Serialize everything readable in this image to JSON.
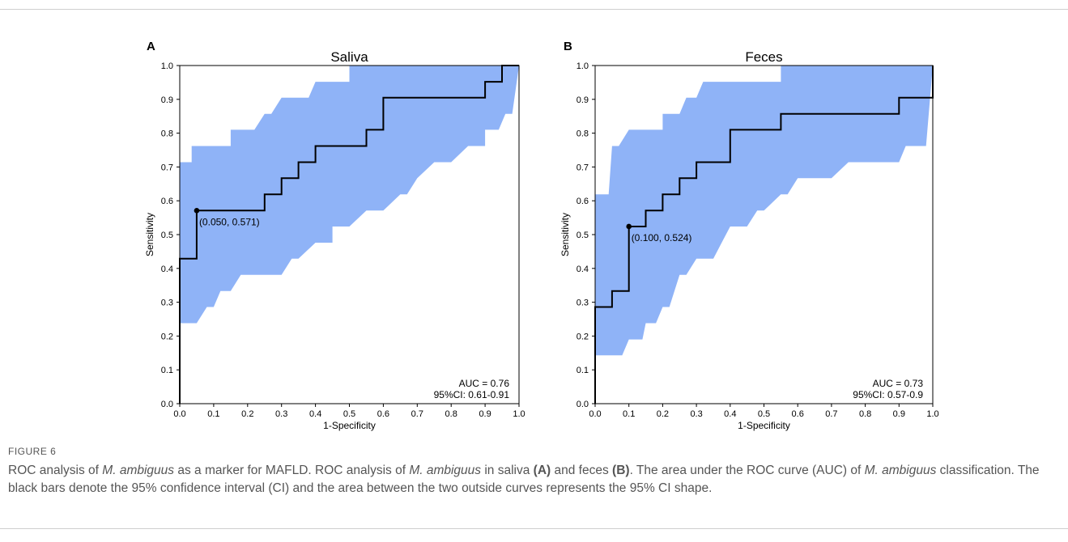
{
  "figure": {
    "label": "FIGURE 6",
    "caption": {
      "s1": "ROC analysis of ",
      "species": "M. ambiguus",
      "s2": " as a marker for MAFLD. ROC analysis of ",
      "s3": " in saliva ",
      "panel_a_ref": "(A)",
      "s4": " and feces ",
      "panel_b_ref": "(B)",
      "s5": ". The area under the ROC curve (AUC) of ",
      "s6": " classification. The black bars denote the 95% confidence interval (CI) and the area between the two outside curves represents the 95% CI shape."
    }
  },
  "colors": {
    "ci_fill": "#8fb3f7",
    "curve": "#000000",
    "axis": "#000000"
  },
  "chart_data": [
    {
      "type": "line",
      "panel_label": "A",
      "title": "Saliva",
      "xlabel": "1-Specificity",
      "ylabel": "Sensitivity",
      "xlim": [
        0,
        1
      ],
      "ylim": [
        0,
        1
      ],
      "x_ticks": [
        "0.0",
        "0.1",
        "0.2",
        "0.3",
        "0.4",
        "0.5",
        "0.6",
        "0.7",
        "0.8",
        "0.9",
        "1.0"
      ],
      "y_ticks": [
        "0.0",
        "0.1",
        "0.2",
        "0.3",
        "0.4",
        "0.5",
        "0.6",
        "0.7",
        "0.8",
        "0.9",
        "1.0"
      ],
      "roc_curve": [
        [
          0,
          0
        ],
        [
          0,
          0.429
        ],
        [
          0.05,
          0.429
        ],
        [
          0.05,
          0.571
        ],
        [
          0.25,
          0.571
        ],
        [
          0.25,
          0.619
        ],
        [
          0.3,
          0.619
        ],
        [
          0.3,
          0.667
        ],
        [
          0.35,
          0.667
        ],
        [
          0.35,
          0.714
        ],
        [
          0.4,
          0.714
        ],
        [
          0.4,
          0.762
        ],
        [
          0.55,
          0.762
        ],
        [
          0.55,
          0.81
        ],
        [
          0.6,
          0.81
        ],
        [
          0.6,
          0.905
        ],
        [
          0.9,
          0.905
        ],
        [
          0.9,
          0.952
        ],
        [
          0.95,
          0.952
        ],
        [
          0.95,
          1.0
        ],
        [
          1.0,
          1.0
        ]
      ],
      "ci_upper": [
        [
          0,
          0.714
        ],
        [
          0.035,
          0.714
        ],
        [
          0.035,
          0.762
        ],
        [
          0.15,
          0.762
        ],
        [
          0.15,
          0.81
        ],
        [
          0.22,
          0.81
        ],
        [
          0.25,
          0.857
        ],
        [
          0.27,
          0.857
        ],
        [
          0.3,
          0.905
        ],
        [
          0.38,
          0.905
        ],
        [
          0.4,
          0.952
        ],
        [
          0.5,
          0.952
        ],
        [
          0.5,
          1.0
        ],
        [
          1.0,
          1.0
        ]
      ],
      "ci_lower": [
        [
          0,
          0.238
        ],
        [
          0.05,
          0.238
        ],
        [
          0.08,
          0.286
        ],
        [
          0.1,
          0.286
        ],
        [
          0.12,
          0.333
        ],
        [
          0.15,
          0.333
        ],
        [
          0.18,
          0.381
        ],
        [
          0.3,
          0.381
        ],
        [
          0.33,
          0.429
        ],
        [
          0.35,
          0.429
        ],
        [
          0.4,
          0.476
        ],
        [
          0.45,
          0.476
        ],
        [
          0.45,
          0.524
        ],
        [
          0.5,
          0.524
        ],
        [
          0.55,
          0.571
        ],
        [
          0.6,
          0.571
        ],
        [
          0.65,
          0.619
        ],
        [
          0.67,
          0.619
        ],
        [
          0.7,
          0.667
        ],
        [
          0.75,
          0.714
        ],
        [
          0.8,
          0.714
        ],
        [
          0.85,
          0.762
        ],
        [
          0.9,
          0.762
        ],
        [
          0.9,
          0.81
        ],
        [
          0.94,
          0.81
        ],
        [
          0.96,
          0.857
        ],
        [
          0.98,
          0.857
        ],
        [
          1.0,
          1.0
        ]
      ],
      "optimal_point": {
        "x": 0.05,
        "y": 0.571,
        "label": "(0.050, 0.571)"
      },
      "auc_text": "AUC = 0.76",
      "ci_text": "95%CI: 0.61-0.91"
    },
    {
      "type": "line",
      "panel_label": "B",
      "title": "Feces",
      "xlabel": "1-Specificity",
      "ylabel": "Sensitivity",
      "xlim": [
        0,
        1
      ],
      "ylim": [
        0,
        1
      ],
      "x_ticks": [
        "0.0",
        "0.1",
        "0.2",
        "0.3",
        "0.4",
        "0.5",
        "0.6",
        "0.7",
        "0.8",
        "0.9",
        "1.0"
      ],
      "y_ticks": [
        "0.0",
        "0.1",
        "0.2",
        "0.3",
        "0.4",
        "0.5",
        "0.6",
        "0.7",
        "0.8",
        "0.9",
        "1.0"
      ],
      "roc_curve": [
        [
          0,
          0
        ],
        [
          0,
          0.286
        ],
        [
          0.05,
          0.286
        ],
        [
          0.05,
          0.333
        ],
        [
          0.1,
          0.333
        ],
        [
          0.1,
          0.524
        ],
        [
          0.15,
          0.524
        ],
        [
          0.15,
          0.571
        ],
        [
          0.2,
          0.571
        ],
        [
          0.2,
          0.619
        ],
        [
          0.25,
          0.619
        ],
        [
          0.25,
          0.667
        ],
        [
          0.3,
          0.667
        ],
        [
          0.3,
          0.714
        ],
        [
          0.4,
          0.714
        ],
        [
          0.4,
          0.81
        ],
        [
          0.55,
          0.81
        ],
        [
          0.55,
          0.857
        ],
        [
          0.9,
          0.857
        ],
        [
          0.9,
          0.905
        ],
        [
          1.0,
          0.905
        ],
        [
          1.0,
          1.0
        ]
      ],
      "ci_upper": [
        [
          0,
          0.619
        ],
        [
          0.04,
          0.619
        ],
        [
          0.05,
          0.762
        ],
        [
          0.07,
          0.762
        ],
        [
          0.1,
          0.81
        ],
        [
          0.2,
          0.81
        ],
        [
          0.2,
          0.857
        ],
        [
          0.25,
          0.857
        ],
        [
          0.27,
          0.905
        ],
        [
          0.3,
          0.905
        ],
        [
          0.32,
          0.952
        ],
        [
          0.55,
          0.952
        ],
        [
          0.55,
          1.0
        ],
        [
          1.0,
          1.0
        ]
      ],
      "ci_lower": [
        [
          0,
          0.143
        ],
        [
          0.08,
          0.143
        ],
        [
          0.1,
          0.19
        ],
        [
          0.14,
          0.19
        ],
        [
          0.15,
          0.238
        ],
        [
          0.18,
          0.238
        ],
        [
          0.2,
          0.286
        ],
        [
          0.22,
          0.286
        ],
        [
          0.25,
          0.381
        ],
        [
          0.27,
          0.381
        ],
        [
          0.3,
          0.429
        ],
        [
          0.35,
          0.429
        ],
        [
          0.4,
          0.524
        ],
        [
          0.45,
          0.524
        ],
        [
          0.48,
          0.571
        ],
        [
          0.5,
          0.571
        ],
        [
          0.55,
          0.619
        ],
        [
          0.57,
          0.619
        ],
        [
          0.6,
          0.667
        ],
        [
          0.7,
          0.667
        ],
        [
          0.75,
          0.714
        ],
        [
          0.9,
          0.714
        ],
        [
          0.92,
          0.762
        ],
        [
          0.98,
          0.762
        ],
        [
          1.0,
          1.0
        ]
      ],
      "optimal_point": {
        "x": 0.1,
        "y": 0.524,
        "label": "(0.100, 0.524)"
      },
      "auc_text": "AUC = 0.73",
      "ci_text": "95%CI: 0.57-0.9"
    }
  ]
}
